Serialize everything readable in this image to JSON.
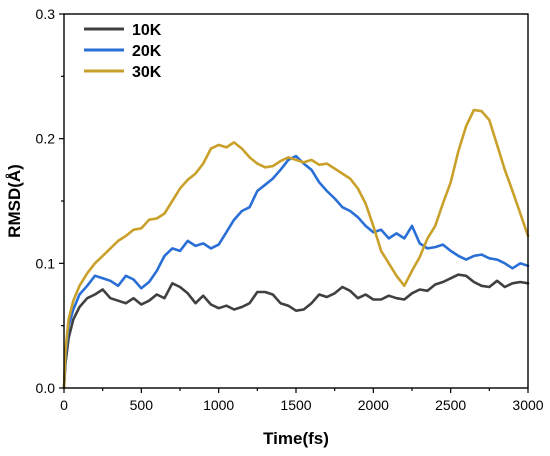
{
  "chart_data": {
    "type": "line",
    "title": "",
    "xlabel": "Time(fs)",
    "ylabel": "RMSD(Å)",
    "xlim": [
      0,
      3000
    ],
    "ylim": [
      0,
      0.3
    ],
    "xticks": [
      0,
      500,
      1000,
      1500,
      2000,
      2500,
      3000
    ],
    "xtick_labels": [
      "0",
      "500",
      "1000",
      "1500",
      "2000",
      "2500",
      "3000"
    ],
    "yticks": [
      0,
      0.1,
      0.2,
      0.3
    ],
    "ytick_labels": [
      "0.0",
      "0.1",
      "0.2",
      "0.3"
    ],
    "grid": false,
    "legend_position": "top-left",
    "x": [
      0,
      10,
      30,
      60,
      100,
      150,
      200,
      250,
      300,
      350,
      400,
      450,
      500,
      550,
      600,
      650,
      700,
      750,
      800,
      850,
      900,
      950,
      1000,
      1050,
      1100,
      1150,
      1200,
      1250,
      1300,
      1350,
      1400,
      1450,
      1500,
      1550,
      1600,
      1650,
      1700,
      1750,
      1800,
      1850,
      1900,
      1950,
      2000,
      2050,
      2100,
      2150,
      2200,
      2250,
      2300,
      2350,
      2400,
      2450,
      2500,
      2550,
      2600,
      2650,
      2700,
      2750,
      2800,
      2850,
      2900,
      2950,
      3000
    ],
    "series": [
      {
        "name": "10K",
        "color": "#404040",
        "values": [
          0.0,
          0.02,
          0.04,
          0.055,
          0.065,
          0.072,
          0.075,
          0.079,
          0.072,
          0.07,
          0.068,
          0.072,
          0.067,
          0.07,
          0.075,
          0.072,
          0.084,
          0.081,
          0.076,
          0.068,
          0.074,
          0.067,
          0.064,
          0.066,
          0.063,
          0.065,
          0.068,
          0.077,
          0.077,
          0.075,
          0.068,
          0.066,
          0.062,
          0.063,
          0.068,
          0.075,
          0.073,
          0.076,
          0.081,
          0.078,
          0.072,
          0.075,
          0.071,
          0.071,
          0.074,
          0.072,
          0.071,
          0.076,
          0.079,
          0.078,
          0.083,
          0.085,
          0.088,
          0.091,
          0.09,
          0.085,
          0.082,
          0.081,
          0.086,
          0.081,
          0.084,
          0.085,
          0.084
        ]
      },
      {
        "name": "20K",
        "color": "#2a6fd6",
        "values": [
          0.0,
          0.025,
          0.05,
          0.063,
          0.075,
          0.082,
          0.09,
          0.088,
          0.086,
          0.082,
          0.09,
          0.087,
          0.08,
          0.085,
          0.094,
          0.106,
          0.112,
          0.11,
          0.118,
          0.114,
          0.116,
          0.112,
          0.115,
          0.125,
          0.135,
          0.142,
          0.145,
          0.158,
          0.163,
          0.168,
          0.175,
          0.183,
          0.186,
          0.18,
          0.175,
          0.165,
          0.158,
          0.152,
          0.145,
          0.142,
          0.137,
          0.13,
          0.125,
          0.127,
          0.12,
          0.124,
          0.12,
          0.13,
          0.116,
          0.112,
          0.113,
          0.115,
          0.11,
          0.106,
          0.103,
          0.106,
          0.107,
          0.104,
          0.103,
          0.1,
          0.096,
          0.1,
          0.098
        ]
      },
      {
        "name": "30K",
        "color": "#c9a02a",
        "values": [
          0.0,
          0.03,
          0.055,
          0.07,
          0.082,
          0.092,
          0.1,
          0.106,
          0.112,
          0.118,
          0.122,
          0.127,
          0.128,
          0.135,
          0.136,
          0.14,
          0.15,
          0.16,
          0.167,
          0.172,
          0.18,
          0.192,
          0.195,
          0.193,
          0.197,
          0.192,
          0.185,
          0.18,
          0.177,
          0.178,
          0.182,
          0.185,
          0.183,
          0.181,
          0.183,
          0.179,
          0.18,
          0.176,
          0.172,
          0.168,
          0.16,
          0.148,
          0.13,
          0.11,
          0.1,
          0.09,
          0.082,
          0.094,
          0.105,
          0.12,
          0.13,
          0.148,
          0.165,
          0.19,
          0.21,
          0.223,
          0.222,
          0.215,
          0.195,
          0.175,
          0.158,
          0.14,
          0.122
        ]
      }
    ]
  }
}
